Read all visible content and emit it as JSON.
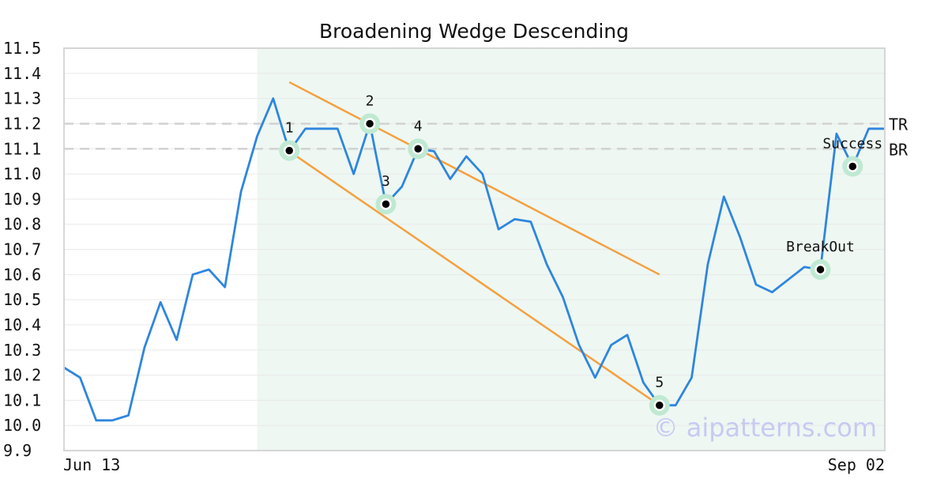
{
  "chart_data": {
    "type": "line",
    "title": "Broadening Wedge Descending",
    "watermark": "© aipatterns.com",
    "ylim": [
      9.9,
      11.5
    ],
    "yticks": [
      "11.5",
      "11.4",
      "11.3",
      "11.2",
      "11.1",
      "11.0",
      "10.9",
      "10.8",
      "10.7",
      "10.6",
      "10.5",
      "10.4",
      "10.3",
      "10.2",
      "10.1",
      "10.0",
      "9.9"
    ],
    "x_start_label": "Jun 13",
    "x_end_label": "Sep 02",
    "grid": true,
    "series": [
      {
        "color": "#2e86de",
        "values": [
          10.23,
          10.19,
          10.02,
          10.02,
          10.04,
          10.31,
          10.49,
          10.34,
          10.6,
          10.62,
          10.55,
          10.93,
          11.15,
          11.3,
          11.09,
          11.18,
          11.18,
          11.18,
          11.0,
          11.2,
          10.88,
          10.95,
          11.1,
          11.09,
          10.98,
          11.07,
          11.0,
          10.78,
          10.82,
          10.81,
          10.64,
          10.51,
          10.32,
          10.19,
          10.32,
          10.36,
          10.17,
          10.08,
          10.08,
          10.19,
          10.64,
          10.91,
          10.75,
          10.56,
          10.53,
          10.58,
          10.63,
          10.62,
          11.16,
          11.03,
          11.18,
          11.18
        ]
      }
    ],
    "pattern_region": {
      "start_index": 12,
      "end_index": 51,
      "color": "#eef7f2"
    },
    "trend_lines": [
      {
        "color": "#f4a040",
        "from": [
          14,
          11.365
        ],
        "to": [
          37,
          10.6
        ]
      },
      {
        "color": "#f4a040",
        "from": [
          14,
          11.09
        ],
        "to": [
          37,
          10.08
        ]
      }
    ],
    "reference_lines": [
      {
        "label": "TR",
        "value": 11.2
      },
      {
        "label": "BR",
        "value": 11.1
      }
    ],
    "points": [
      {
        "label": "1",
        "index": 14,
        "value": 11.093
      },
      {
        "label": "2",
        "index": 19,
        "value": 11.2
      },
      {
        "label": "3",
        "index": 20,
        "value": 10.88
      },
      {
        "label": "4",
        "index": 22,
        "value": 11.1
      },
      {
        "label": "5",
        "index": 37,
        "value": 10.08
      },
      {
        "label": "BreakOut",
        "index": 47,
        "value": 10.62
      },
      {
        "label": "Success",
        "index": 49,
        "value": 11.03
      }
    ]
  }
}
